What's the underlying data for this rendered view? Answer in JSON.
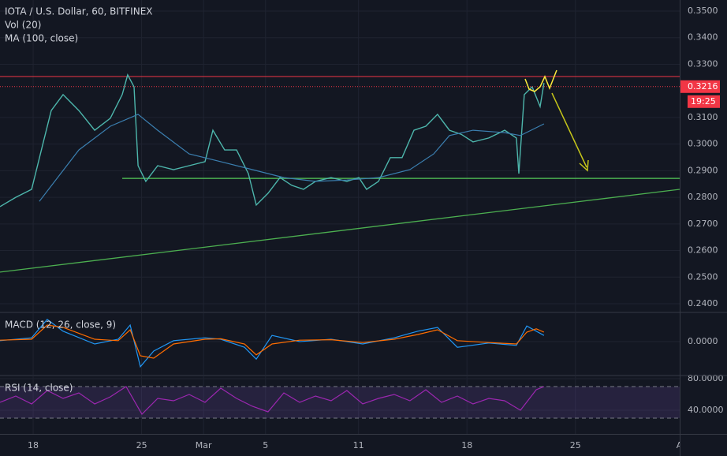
{
  "chart_data": [
    {
      "type": "line",
      "title": "IOTA / U.S. Dollar, 60, BITFINEX",
      "volume_label": "Vol (20)",
      "ylim": [
        0.23704,
        0.35415
      ],
      "yticks": [
        {
          "value": 0.35,
          "label": "0.3500"
        },
        {
          "value": 0.34,
          "label": "0.3400"
        },
        {
          "value": 0.33,
          "label": "0.3300"
        },
        {
          "value": 0.31,
          "label": "0.3100"
        },
        {
          "value": 0.3,
          "label": "0.3000"
        },
        {
          "value": 0.29,
          "label": "0.2900"
        },
        {
          "value": 0.28,
          "label": "0.2800"
        },
        {
          "value": 0.27,
          "label": "0.2700"
        },
        {
          "value": 0.26,
          "label": "0.2600"
        },
        {
          "value": 0.25,
          "label": "0.2500"
        },
        {
          "value": 0.24,
          "label": "0.2400"
        }
      ],
      "xlim": [
        15.86,
        59.73
      ],
      "grid": true,
      "series": [
        {
          "color": "#4db6ac",
          "x": [
            15.86,
            16.88,
            17.9,
            18.66,
            19.17,
            19.93,
            20.95,
            21.97,
            22.98,
            23.75,
            24.1,
            24.51,
            24.77,
            25.27,
            26.04,
            27.06,
            28.07,
            29.09,
            29.6,
            30.36,
            31.13,
            31.89,
            32.4,
            33.16,
            33.93,
            34.69,
            35.45,
            36.22,
            37.23,
            38.25,
            39.02,
            39.52,
            40.29,
            41.05,
            41.81,
            42.58,
            43.34,
            44.1,
            44.87,
            45.63,
            46.39,
            47.41,
            48.43,
            49.19,
            49.35,
            49.7,
            50.21,
            50.72,
            50.97
          ],
          "values": [
            0.2765,
            0.28,
            0.283,
            0.3008,
            0.3126,
            0.3186,
            0.3126,
            0.3052,
            0.3097,
            0.3186,
            0.326,
            0.3215,
            0.2919,
            0.286,
            0.2919,
            0.2904,
            0.2919,
            0.2934,
            0.3052,
            0.2978,
            0.2978,
            0.2889,
            0.2771,
            0.2815,
            0.2874,
            0.2845,
            0.283,
            0.286,
            0.2874,
            0.286,
            0.2874,
            0.283,
            0.286,
            0.2949,
            0.2949,
            0.3052,
            0.3067,
            0.3112,
            0.3052,
            0.3037,
            0.3008,
            0.3023,
            0.3052,
            0.3023,
            0.2889,
            0.3186,
            0.3215,
            0.3141,
            0.323
          ]
        },
        {
          "name": "MA (100, close)",
          "color": "#3b7fb0",
          "x": [
            18.4,
            20.95,
            22.98,
            24.77,
            26.04,
            28.07,
            30.11,
            32.15,
            34.18,
            36.22,
            38.25,
            40.29,
            42.32,
            43.85,
            44.87,
            46.39,
            48.43,
            49.45,
            50.97
          ],
          "values": [
            0.2785,
            0.2978,
            0.3067,
            0.3112,
            0.3052,
            0.2963,
            0.2934,
            0.2904,
            0.2874,
            0.286,
            0.2865,
            0.2874,
            0.2904,
            0.2963,
            0.3032,
            0.3052,
            0.3043,
            0.3032,
            0.3076
          ]
        }
      ],
      "resistance": {
        "value": 0.3254,
        "color": "#f23645"
      },
      "support": {
        "value": 0.2871,
        "x_start": 23.75,
        "color": "#4caf50"
      },
      "trendline": {
        "x": [
          15.86,
          59.73
        ],
        "values": [
          0.2519,
          0.283
        ],
        "color": "#4caf50"
      },
      "last_price": 0.3216,
      "countdown": "19:25"
    },
    {
      "type": "line",
      "title": "MACD (12, 26, close, 9)",
      "ylim": [
        -0.007,
        0.006
      ],
      "yticks": [
        {
          "value": 0,
          "label": "0.0000"
        }
      ],
      "xlim": [
        15.86,
        59.73
      ],
      "series": [
        {
          "color": "#2196f3",
          "x": [
            15.86,
            17.9,
            18.91,
            19.93,
            21.97,
            23.49,
            24.26,
            24.92,
            25.78,
            27.06,
            29.09,
            30.11,
            31.64,
            32.4,
            33.42,
            35.2,
            37.23,
            39.27,
            41.3,
            42.83,
            44.1,
            45.38,
            47.41,
            49.19,
            49.86,
            50.47,
            50.97
          ],
          "values": [
            0.0002,
            0.0008,
            0.0047,
            0.0022,
            -0.0005,
            0.0005,
            0.0035,
            -0.0053,
            -0.002,
            0.0002,
            0.0008,
            0.0005,
            -0.0012,
            -0.0037,
            0.0013,
            0,
            0.0005,
            -0.0005,
            0.0008,
            0.0022,
            0.003,
            -0.0012,
            -0.0003,
            -0.0008,
            0.0033,
            0.0022,
            0.0013
          ]
        },
        {
          "color": "#ff6d00",
          "x": [
            15.86,
            17.9,
            18.91,
            19.93,
            21.97,
            23.49,
            24.26,
            24.92,
            25.78,
            27.06,
            29.09,
            30.11,
            31.64,
            32.4,
            33.42,
            35.2,
            37.23,
            39.27,
            41.3,
            42.83,
            44.1,
            45.38,
            47.41,
            49.19,
            49.86,
            50.47,
            50.97
          ],
          "values": [
            0.0003,
            0.0005,
            0.0035,
            0.003,
            0.0005,
            0.0002,
            0.0025,
            -0.003,
            -0.0035,
            -0.0005,
            0.0005,
            0.0006,
            -0.0005,
            -0.0028,
            -0.0005,
            0.0003,
            0.0004,
            -0.0002,
            0.0005,
            0.0015,
            0.0025,
            0.0002,
            -0.0002,
            -0.0005,
            0.002,
            0.0027,
            0.002
          ]
        }
      ]
    },
    {
      "type": "line",
      "title": "RSI (14, close)",
      "ylim": [
        10,
        83
      ],
      "yticks": [
        {
          "value": 80,
          "label": "80.0000"
        },
        {
          "value": 40,
          "label": "40.0000"
        }
      ],
      "bands": [
        70,
        30
      ],
      "xlim": [
        15.86,
        59.73
      ],
      "xticks": [
        18,
        25,
        {
          "value": 29,
          "label": "Mar"
        },
        {
          "value": 33,
          "label": "5"
        },
        {
          "value": 39,
          "label": "11"
        },
        {
          "value": 46,
          "label": "18"
        },
        {
          "value": 53,
          "label": "25"
        },
        {
          "value": 60,
          "label": "Apr"
        }
      ],
      "series": [
        {
          "color": "#9c27b0",
          "x": [
            15.86,
            16.88,
            17.9,
            18.91,
            19.93,
            20.95,
            21.97,
            22.98,
            24.0,
            25.02,
            26.04,
            27.06,
            28.07,
            29.09,
            30.11,
            31.13,
            32.15,
            33.16,
            34.18,
            35.2,
            36.22,
            37.23,
            38.25,
            39.27,
            40.29,
            41.3,
            42.32,
            43.34,
            44.36,
            45.38,
            46.39,
            47.41,
            48.43,
            49.45,
            50.47,
            50.97
          ],
          "values": [
            50,
            58,
            48,
            65,
            55,
            62,
            48,
            57,
            70,
            35,
            55,
            52,
            60,
            50,
            68,
            55,
            45,
            38,
            62,
            50,
            58,
            52,
            65,
            48,
            55,
            60,
            52,
            66,
            50,
            58,
            48,
            55,
            52,
            40,
            66,
            70
          ]
        }
      ]
    }
  ]
}
